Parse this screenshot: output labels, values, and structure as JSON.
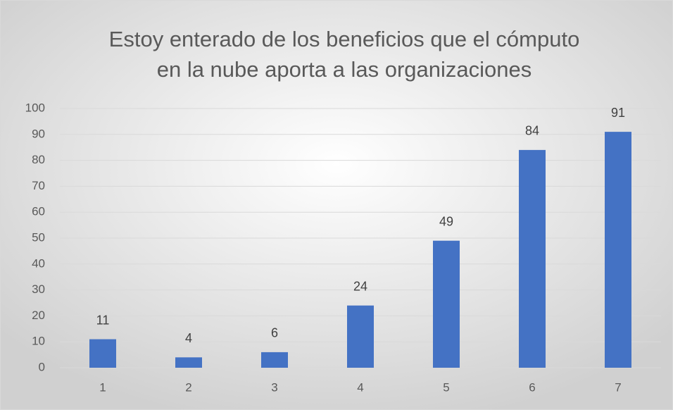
{
  "chart_data": {
    "type": "bar",
    "title": [
      "Estoy enterado de los beneficios que el cómputo",
      "en la nube aporta a las organizaciones"
    ],
    "categories": [
      "1",
      "2",
      "3",
      "4",
      "5",
      "6",
      "7"
    ],
    "values": [
      11,
      4,
      6,
      24,
      49,
      84,
      91
    ],
    "color": "#4472c4",
    "ylim": [
      0,
      100
    ],
    "yticks": [
      0,
      10,
      20,
      30,
      40,
      50,
      60,
      70,
      80,
      90,
      100
    ],
    "grid": true,
    "data_labels": true
  }
}
